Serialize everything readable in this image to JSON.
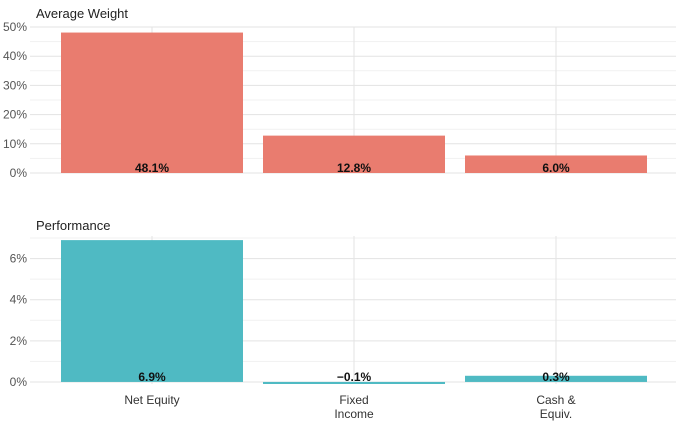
{
  "chart_data": [
    {
      "type": "bar",
      "title": "Average Weight",
      "categories": [
        "Net Equity",
        "Fixed Income",
        "Cash & Equiv."
      ],
      "values": [
        48.1,
        12.8,
        6.0
      ],
      "data_labels": [
        "48.1%",
        "12.8%",
        "6.0%"
      ],
      "ylim": [
        0,
        50
      ],
      "yticks": [
        0,
        10,
        20,
        30,
        40,
        50
      ],
      "ytick_labels": [
        "0%",
        "10%",
        "20%",
        "30%",
        "40%",
        "50%"
      ],
      "color": "#E97C6F",
      "grid": true
    },
    {
      "type": "bar",
      "title": "Performance",
      "categories": [
        "Net Equity",
        "Fixed Income",
        "Cash & Equiv."
      ],
      "category_lines": [
        [
          "Net Equity"
        ],
        [
          "Fixed",
          "Income"
        ],
        [
          "Cash &",
          "Equiv."
        ]
      ],
      "values": [
        6.9,
        -0.1,
        0.3
      ],
      "data_labels": [
        "6.9%",
        "−0.1%",
        "0.3%"
      ],
      "ylim": [
        -0.1,
        7.1
      ],
      "yticks": [
        0,
        2,
        4,
        6
      ],
      "ytick_labels": [
        "0%",
        "2%",
        "4%",
        "6%"
      ],
      "color": "#4FBAC3",
      "grid": true
    }
  ]
}
